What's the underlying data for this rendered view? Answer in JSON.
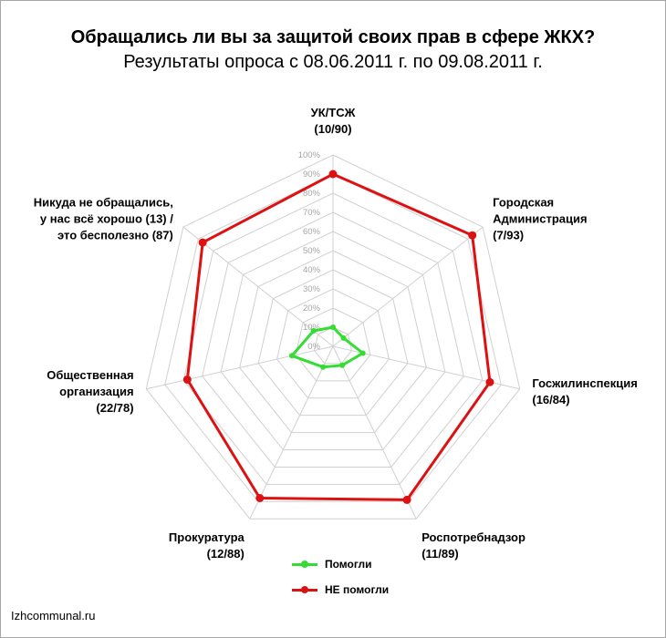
{
  "title": "Обращались ли вы за защитой своих прав в сфере ЖКХ?",
  "subtitle": "Результаты опроса с 08.06.2011 г. по 09.08.2011 г.",
  "footer": "Izhcommunal.ru",
  "chart_data": {
    "type": "radar",
    "categories": [
      [
        "УК/ТСЖ",
        "(10/90)"
      ],
      [
        "Городская",
        "Администрация",
        "(7/93)"
      ],
      [
        "Госжилинспекция",
        "(16/84)"
      ],
      [
        "Роспотребнадзор",
        "(11/89)"
      ],
      [
        "Прокуратура",
        "(12/88)"
      ],
      [
        "Общественная",
        "организация",
        "(22/78)"
      ],
      [
        "Никуда не обращались,",
        "у нас всё хорошо (13) /",
        "это бесполезно (87)"
      ]
    ],
    "rlim": [
      0,
      100
    ],
    "ticks": [
      "0%",
      "10%",
      "20%",
      "30%",
      "40%",
      "50%",
      "60%",
      "70%",
      "80%",
      "90%",
      "100%"
    ],
    "series": [
      {
        "name": "Помогли",
        "color": "#33dd33",
        "values": [
          10,
          7,
          16,
          11,
          12,
          22,
          13
        ]
      },
      {
        "name": "НЕ помогли",
        "color": "#dd1111",
        "values": [
          90,
          93,
          84,
          89,
          88,
          78,
          87
        ]
      }
    ],
    "legend_position": "bottom"
  }
}
